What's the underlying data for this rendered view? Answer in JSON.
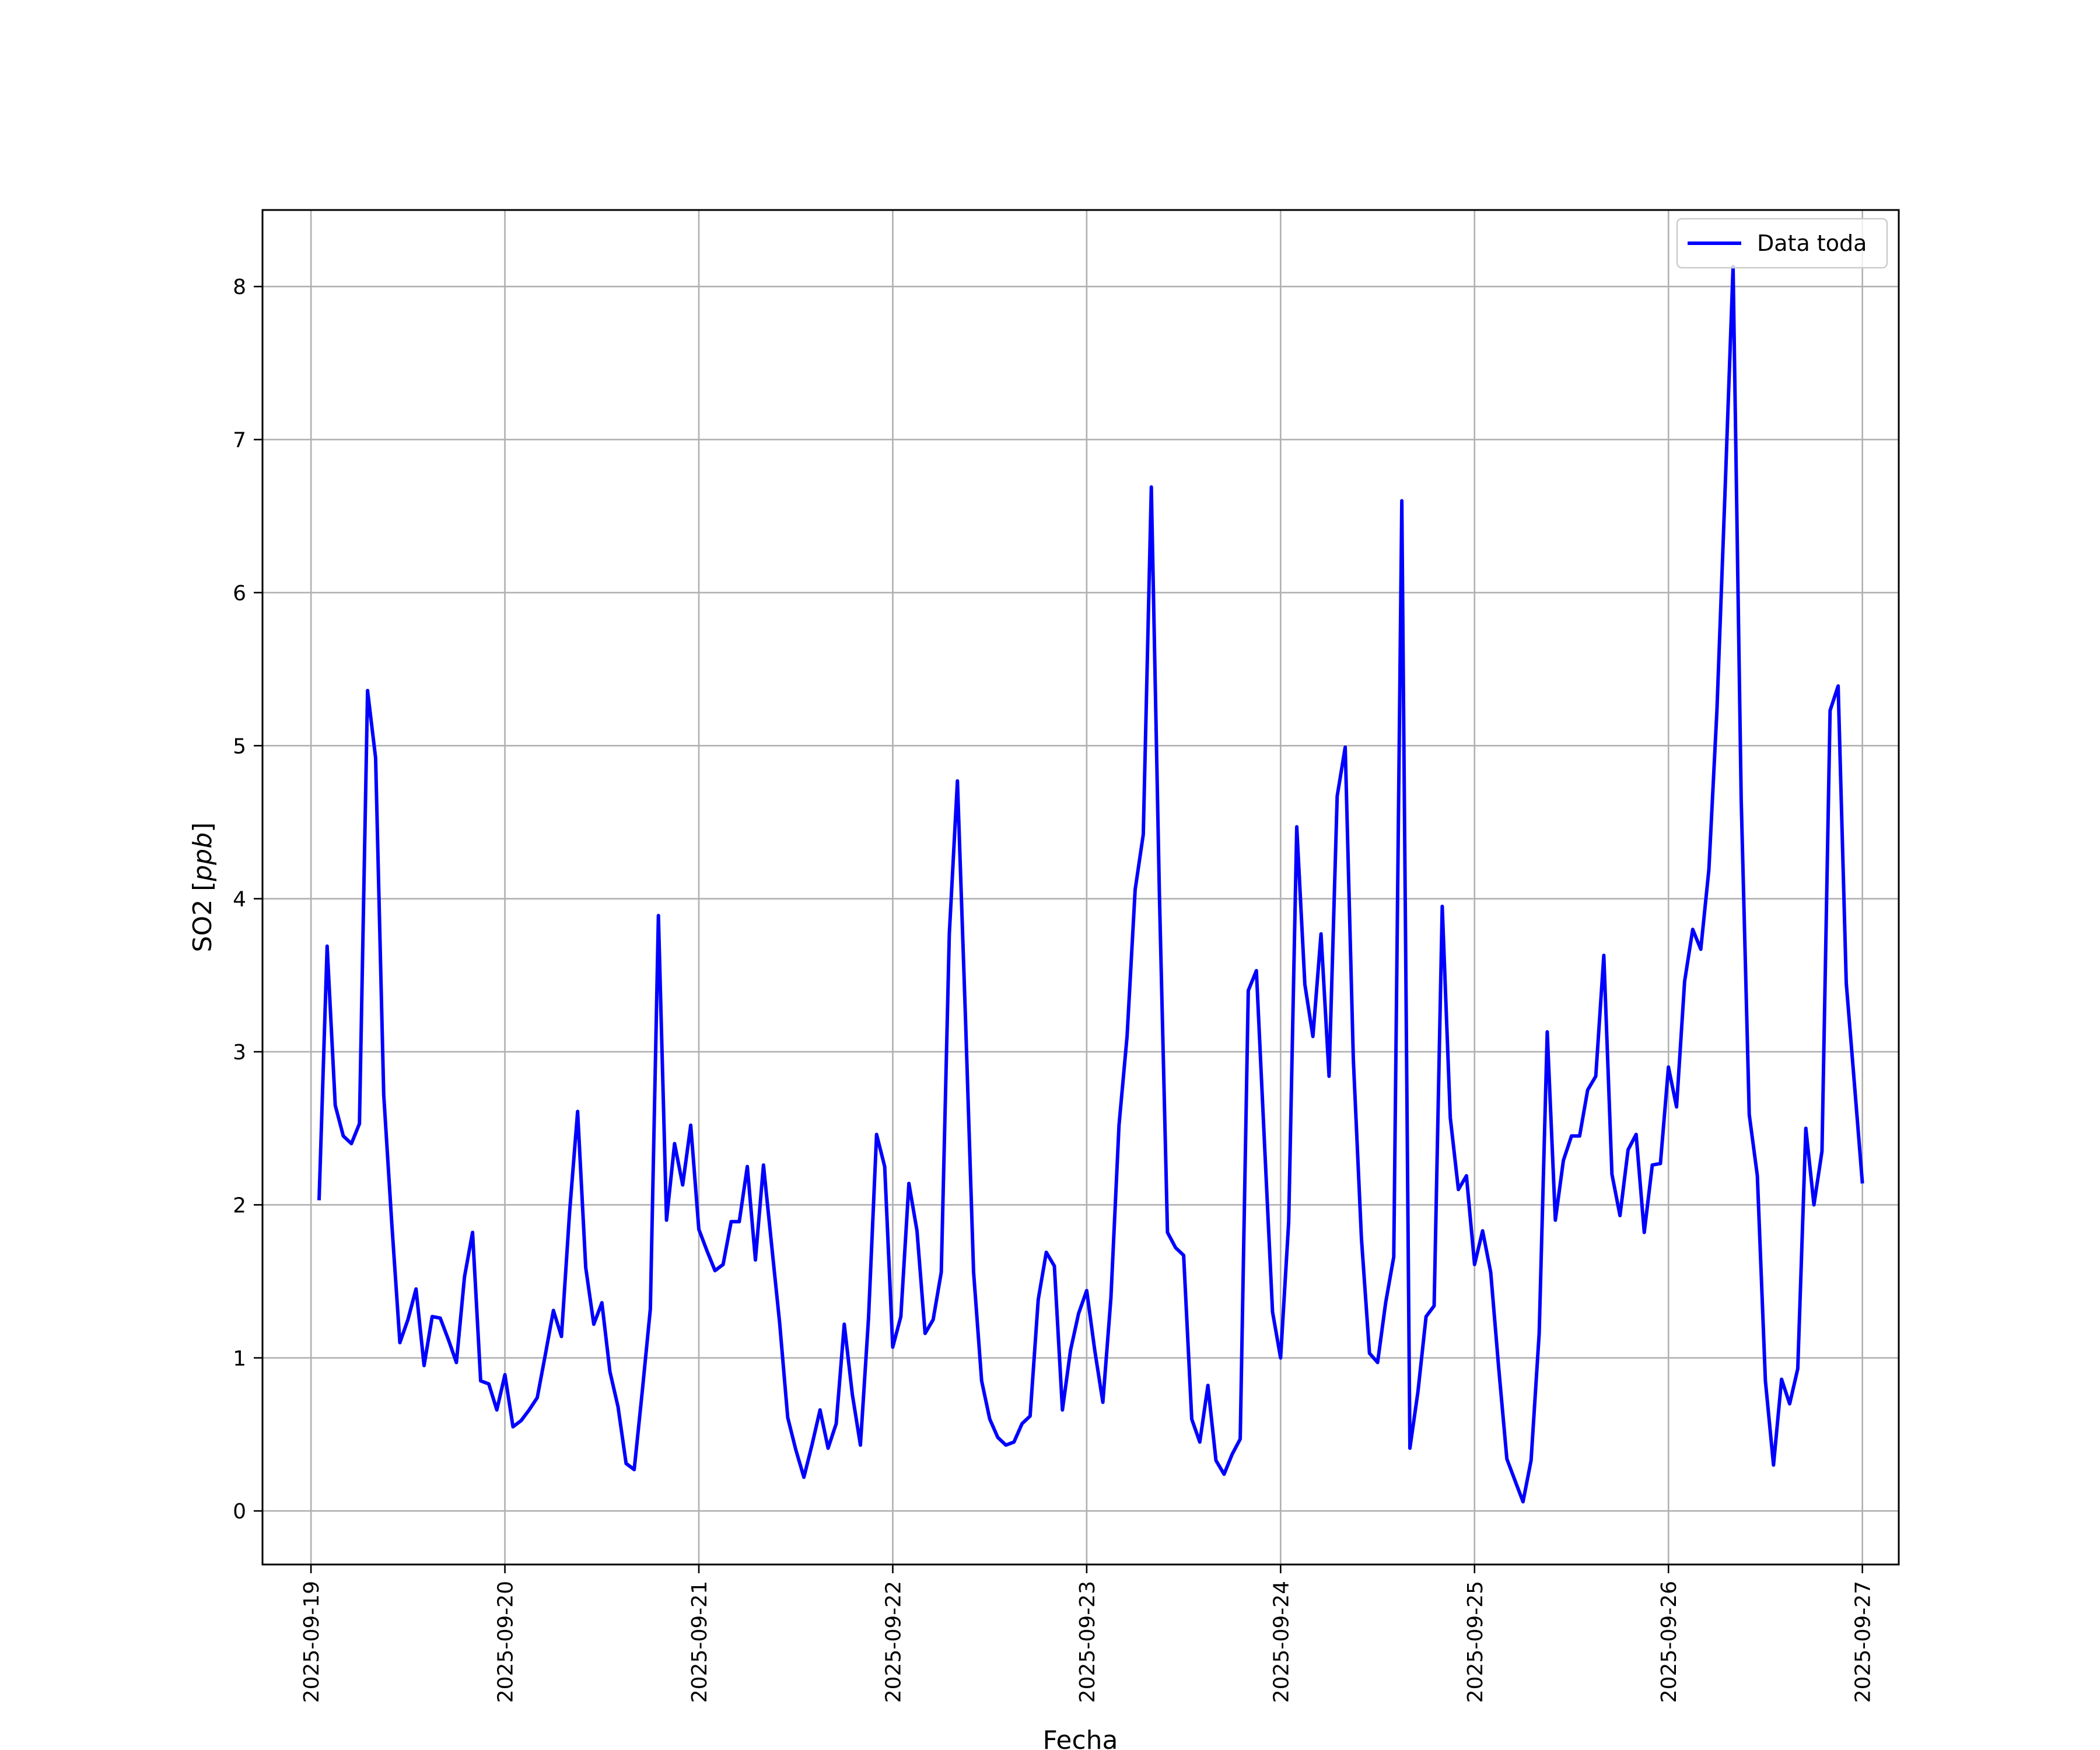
{
  "chart_data": {
    "type": "line",
    "title": "",
    "xlabel": "Fecha",
    "ylabel_main": "SO2 [",
    "ylabel_unit": "ppb",
    "ylabel_close": "]",
    "xlim": [
      "2025-09-18 18:00",
      "2025-09-27 04:30"
    ],
    "ylim": [
      -0.35,
      8.5
    ],
    "grid": true,
    "legend_position": "top-right",
    "x_ticks": [
      "2025-09-19",
      "2025-09-20",
      "2025-09-21",
      "2025-09-22",
      "2025-09-23",
      "2025-09-24",
      "2025-09-25",
      "2025-09-26",
      "2025-09-27"
    ],
    "y_ticks": [
      0,
      1,
      2,
      3,
      4,
      5,
      6,
      7,
      8
    ],
    "series": [
      {
        "name": "Data toda",
        "color": "#0000ff",
        "x": [
          "2025-09-19 01:00",
          "2025-09-19 02:00",
          "2025-09-19 03:00",
          "2025-09-19 04:00",
          "2025-09-19 05:00",
          "2025-09-19 06:00",
          "2025-09-19 07:00",
          "2025-09-19 08:00",
          "2025-09-19 09:00",
          "2025-09-19 10:00",
          "2025-09-19 11:00",
          "2025-09-19 12:00",
          "2025-09-19 13:00",
          "2025-09-19 14:00",
          "2025-09-19 15:00",
          "2025-09-19 16:00",
          "2025-09-19 17:00",
          "2025-09-19 18:00",
          "2025-09-19 19:00",
          "2025-09-19 20:00",
          "2025-09-19 21:00",
          "2025-09-19 22:00",
          "2025-09-19 23:00",
          "2025-09-20 00:00",
          "2025-09-20 01:00",
          "2025-09-20 02:00",
          "2025-09-20 03:00",
          "2025-09-20 04:00",
          "2025-09-20 05:00",
          "2025-09-20 06:00",
          "2025-09-20 07:00",
          "2025-09-20 08:00",
          "2025-09-20 09:00",
          "2025-09-20 10:00",
          "2025-09-20 11:00",
          "2025-09-20 12:00",
          "2025-09-20 13:00",
          "2025-09-20 14:00",
          "2025-09-20 15:00",
          "2025-09-20 16:00",
          "2025-09-20 17:00",
          "2025-09-20 18:00",
          "2025-09-20 19:00",
          "2025-09-20 20:00",
          "2025-09-20 21:00",
          "2025-09-20 22:00",
          "2025-09-20 23:00",
          "2025-09-21 00:00",
          "2025-09-21 01:00",
          "2025-09-21 02:00",
          "2025-09-21 03:00",
          "2025-09-21 04:00",
          "2025-09-21 05:00",
          "2025-09-21 06:00",
          "2025-09-21 07:00",
          "2025-09-21 08:00",
          "2025-09-21 09:00",
          "2025-09-21 10:00",
          "2025-09-21 11:00",
          "2025-09-21 12:00",
          "2025-09-21 13:00",
          "2025-09-21 14:00",
          "2025-09-21 15:00",
          "2025-09-21 16:00",
          "2025-09-21 17:00",
          "2025-09-21 18:00",
          "2025-09-21 19:00",
          "2025-09-21 20:00",
          "2025-09-21 21:00",
          "2025-09-21 22:00",
          "2025-09-21 23:00",
          "2025-09-22 00:00",
          "2025-09-22 01:00",
          "2025-09-22 02:00",
          "2025-09-22 03:00",
          "2025-09-22 04:00",
          "2025-09-22 05:00",
          "2025-09-22 06:00",
          "2025-09-22 07:00",
          "2025-09-22 08:00",
          "2025-09-22 09:00",
          "2025-09-22 10:00",
          "2025-09-22 11:00",
          "2025-09-22 12:00",
          "2025-09-22 13:00",
          "2025-09-22 14:00",
          "2025-09-22 15:00",
          "2025-09-22 16:00",
          "2025-09-22 17:00",
          "2025-09-22 18:00",
          "2025-09-22 19:00",
          "2025-09-22 20:00",
          "2025-09-22 21:00",
          "2025-09-22 22:00",
          "2025-09-22 23:00",
          "2025-09-23 00:00",
          "2025-09-23 01:00",
          "2025-09-23 02:00",
          "2025-09-23 03:00",
          "2025-09-23 04:00",
          "2025-09-23 05:00",
          "2025-09-23 06:00",
          "2025-09-23 07:00",
          "2025-09-23 08:00",
          "2025-09-23 09:00",
          "2025-09-23 10:00",
          "2025-09-23 11:00",
          "2025-09-23 12:00",
          "2025-09-23 13:00",
          "2025-09-23 14:00",
          "2025-09-23 15:00",
          "2025-09-23 16:00",
          "2025-09-23 17:00",
          "2025-09-23 18:00",
          "2025-09-23 19:00",
          "2025-09-23 20:00",
          "2025-09-23 21:00",
          "2025-09-23 22:00",
          "2025-09-23 23:00",
          "2025-09-24 00:00",
          "2025-09-24 01:00",
          "2025-09-24 02:00",
          "2025-09-24 03:00",
          "2025-09-24 04:00",
          "2025-09-24 05:00",
          "2025-09-24 06:00",
          "2025-09-24 07:00",
          "2025-09-24 08:00",
          "2025-09-24 09:00",
          "2025-09-24 10:00",
          "2025-09-24 11:00",
          "2025-09-24 12:00",
          "2025-09-24 13:00",
          "2025-09-24 14:00",
          "2025-09-24 15:00",
          "2025-09-24 16:00",
          "2025-09-24 17:00",
          "2025-09-24 18:00",
          "2025-09-24 19:00",
          "2025-09-24 20:00",
          "2025-09-24 21:00",
          "2025-09-24 22:00",
          "2025-09-24 23:00",
          "2025-09-25 00:00",
          "2025-09-25 01:00",
          "2025-09-25 02:00",
          "2025-09-25 03:00",
          "2025-09-25 04:00",
          "2025-09-25 05:00",
          "2025-09-25 06:00",
          "2025-09-25 07:00",
          "2025-09-25 08:00",
          "2025-09-25 09:00",
          "2025-09-25 10:00",
          "2025-09-25 11:00",
          "2025-09-25 12:00",
          "2025-09-25 13:00",
          "2025-09-25 14:00",
          "2025-09-25 15:00",
          "2025-09-25 16:00",
          "2025-09-25 17:00",
          "2025-09-25 18:00",
          "2025-09-25 19:00",
          "2025-09-25 20:00",
          "2025-09-25 21:00",
          "2025-09-25 22:00",
          "2025-09-25 23:00",
          "2025-09-26 00:00",
          "2025-09-26 01:00",
          "2025-09-26 02:00",
          "2025-09-26 03:00",
          "2025-09-26 04:00",
          "2025-09-26 05:00",
          "2025-09-26 06:00",
          "2025-09-26 07:00",
          "2025-09-26 08:00",
          "2025-09-26 09:00",
          "2025-09-26 10:00",
          "2025-09-26 11:00",
          "2025-09-26 12:00",
          "2025-09-26 13:00",
          "2025-09-26 14:00",
          "2025-09-26 15:00",
          "2025-09-26 16:00",
          "2025-09-26 17:00",
          "2025-09-26 18:00",
          "2025-09-26 19:00",
          "2025-09-26 20:00",
          "2025-09-26 21:00",
          "2025-09-26 22:00",
          "2025-09-26 23:00",
          "2025-09-27 00:00"
        ],
        "y": [
          2.03,
          3.69,
          2.65,
          2.45,
          2.4,
          2.53,
          5.36,
          4.92,
          2.72,
          1.88,
          1.1,
          1.25,
          1.45,
          0.95,
          1.27,
          1.26,
          1.12,
          0.97,
          1.53,
          1.82,
          0.85,
          0.83,
          0.66,
          0.89,
          0.55,
          0.59,
          0.66,
          0.74,
          1.02,
          1.31,
          1.14,
          1.95,
          2.61,
          1.59,
          1.22,
          1.36,
          0.91,
          0.68,
          0.31,
          0.27,
          0.78,
          1.32,
          3.89,
          1.9,
          2.4,
          2.13,
          2.52,
          1.84,
          1.7,
          1.57,
          1.61,
          1.89,
          1.89,
          2.25,
          1.64,
          2.26,
          1.74,
          1.23,
          0.61,
          0.4,
          0.22,
          0.43,
          0.66,
          0.41,
          0.57,
          1.22,
          0.76,
          0.43,
          1.26,
          2.46,
          2.25,
          1.07,
          1.27,
          2.14,
          1.83,
          1.16,
          1.25,
          1.56,
          3.77,
          4.77,
          3.22,
          1.56,
          0.85,
          0.6,
          0.48,
          0.43,
          0.45,
          0.57,
          0.62,
          1.38,
          1.69,
          1.6,
          0.66,
          1.05,
          1.29,
          1.44,
          1.05,
          0.71,
          1.39,
          2.52,
          3.1,
          4.06,
          4.42,
          6.69,
          4.02,
          1.82,
          1.72,
          1.67,
          0.6,
          0.45,
          0.82,
          0.33,
          0.24,
          0.37,
          0.47,
          3.4,
          3.53,
          2.41,
          1.3,
          1.0,
          1.89,
          4.47,
          3.44,
          3.1,
          3.77,
          2.84,
          4.67,
          4.99,
          2.95,
          1.78,
          1.03,
          0.97,
          1.36,
          1.66,
          6.6,
          0.41,
          0.78,
          1.27,
          1.34,
          3.95,
          2.57,
          2.1,
          2.19,
          1.61,
          1.83,
          1.56,
          0.93,
          0.34,
          0.2,
          0.06,
          0.33,
          1.16,
          3.13,
          1.9,
          2.29,
          2.45,
          2.45,
          2.75,
          2.84,
          3.63,
          2.2,
          1.93,
          2.36,
          2.46,
          1.82,
          2.26,
          2.27,
          2.9,
          2.64,
          3.46,
          3.8,
          3.67,
          4.19,
          5.23,
          6.66,
          8.13,
          4.65,
          2.59,
          2.19,
          0.85,
          0.3,
          0.86,
          0.7,
          0.93,
          2.5,
          2.0,
          2.35,
          5.23,
          5.39,
          3.45,
          2.8,
          2.14
        ]
      }
    ]
  }
}
